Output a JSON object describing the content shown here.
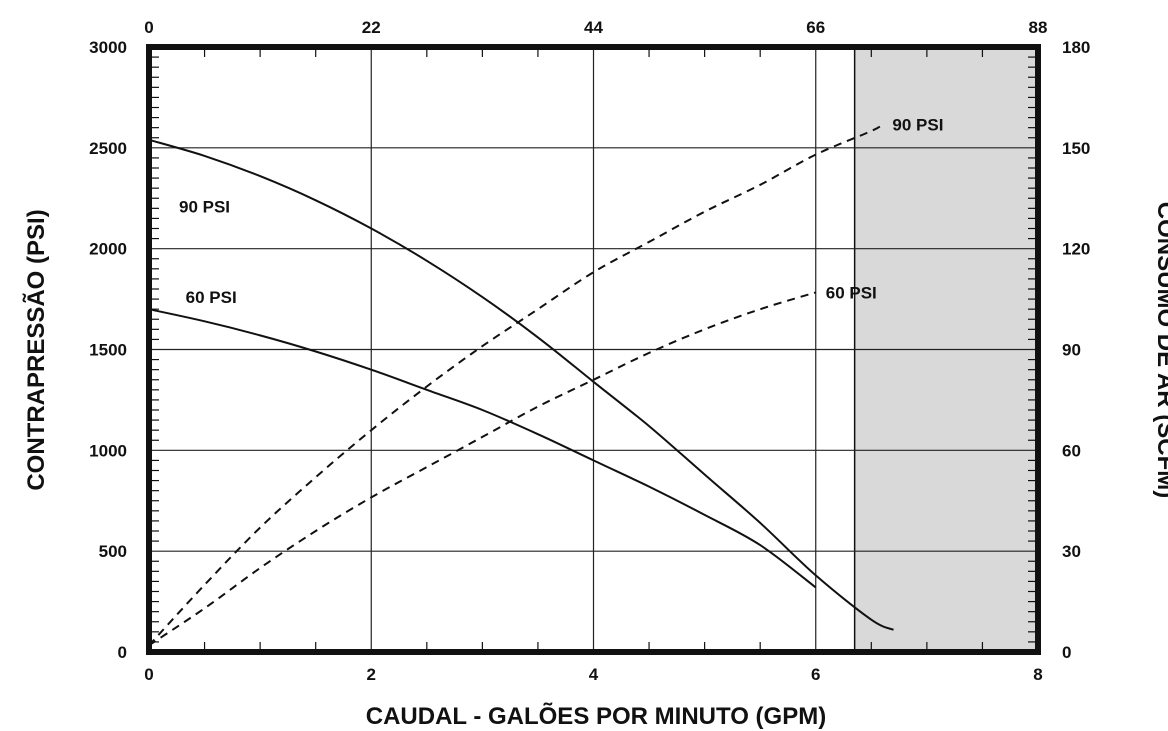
{
  "chart_data": {
    "type": "line",
    "title": "",
    "xlabel": "CAUDAL - GALÕES POR MINUTO (GPM)",
    "ylabel": "CONTRAPRESSÃO (PSI)",
    "y2label": "CONSUMO DE AR (SCFM)",
    "xlim": [
      0,
      8
    ],
    "ylim": [
      0,
      3000
    ],
    "x2lim": [
      0,
      88
    ],
    "y2lim": [
      0,
      180
    ],
    "x_ticks": [
      "0",
      "2",
      "4",
      "6",
      "8"
    ],
    "x2_ticks": [
      "0",
      "22",
      "44",
      "66",
      "88"
    ],
    "y_ticks": [
      "0",
      "500",
      "1000",
      "1500",
      "2000",
      "2500",
      "3000"
    ],
    "y2_ticks": [
      "0",
      "30",
      "60",
      "90",
      "120",
      "150",
      "180"
    ],
    "grid": true,
    "shaded_region": {
      "x_from": 6.35,
      "x_to": 8,
      "color": "#d9d9d9"
    },
    "series": [
      {
        "name": "90 PSI",
        "axis": "left",
        "style": "solid",
        "x": [
          0,
          0.5,
          1,
          1.5,
          2,
          2.5,
          3,
          3.5,
          4,
          4.5,
          5,
          5.5,
          6,
          6.5,
          6.7
        ],
        "y": [
          2540,
          2460,
          2360,
          2240,
          2100,
          1940,
          1760,
          1560,
          1340,
          1120,
          880,
          640,
          380,
          160,
          110
        ]
      },
      {
        "name": "60 PSI",
        "axis": "left",
        "style": "solid",
        "x": [
          0,
          0.5,
          1,
          1.5,
          2,
          2.5,
          3,
          3.5,
          4,
          4.5,
          5,
          5.5,
          6
        ],
        "y": [
          1700,
          1640,
          1570,
          1490,
          1400,
          1300,
          1200,
          1080,
          950,
          820,
          680,
          530,
          320
        ]
      },
      {
        "name": "90 PSI",
        "axis": "right",
        "style": "dashed",
        "x": [
          0,
          0.5,
          1,
          1.5,
          2,
          2.5,
          3,
          3.5,
          4,
          4.5,
          5,
          5.5,
          6,
          6.5,
          6.6
        ],
        "y": [
          2,
          20,
          37,
          52,
          66,
          79,
          91,
          102,
          113,
          122,
          131,
          139,
          148,
          155,
          157
        ]
      },
      {
        "name": "60 PSI",
        "axis": "right",
        "style": "dashed",
        "x": [
          0,
          0.5,
          1,
          1.5,
          2,
          2.5,
          3,
          3.5,
          4,
          4.5,
          5,
          5.5,
          6
        ],
        "y": [
          2,
          13,
          25,
          36,
          46,
          55,
          64,
          73,
          81,
          89,
          96,
          102,
          107
        ]
      }
    ],
    "labels": [
      {
        "text": "90 PSI",
        "series": 0
      },
      {
        "text": "60 PSI",
        "series": 1
      },
      {
        "text": "90 PSI",
        "series": 2
      },
      {
        "text": "60 PSI",
        "series": 3
      }
    ]
  }
}
